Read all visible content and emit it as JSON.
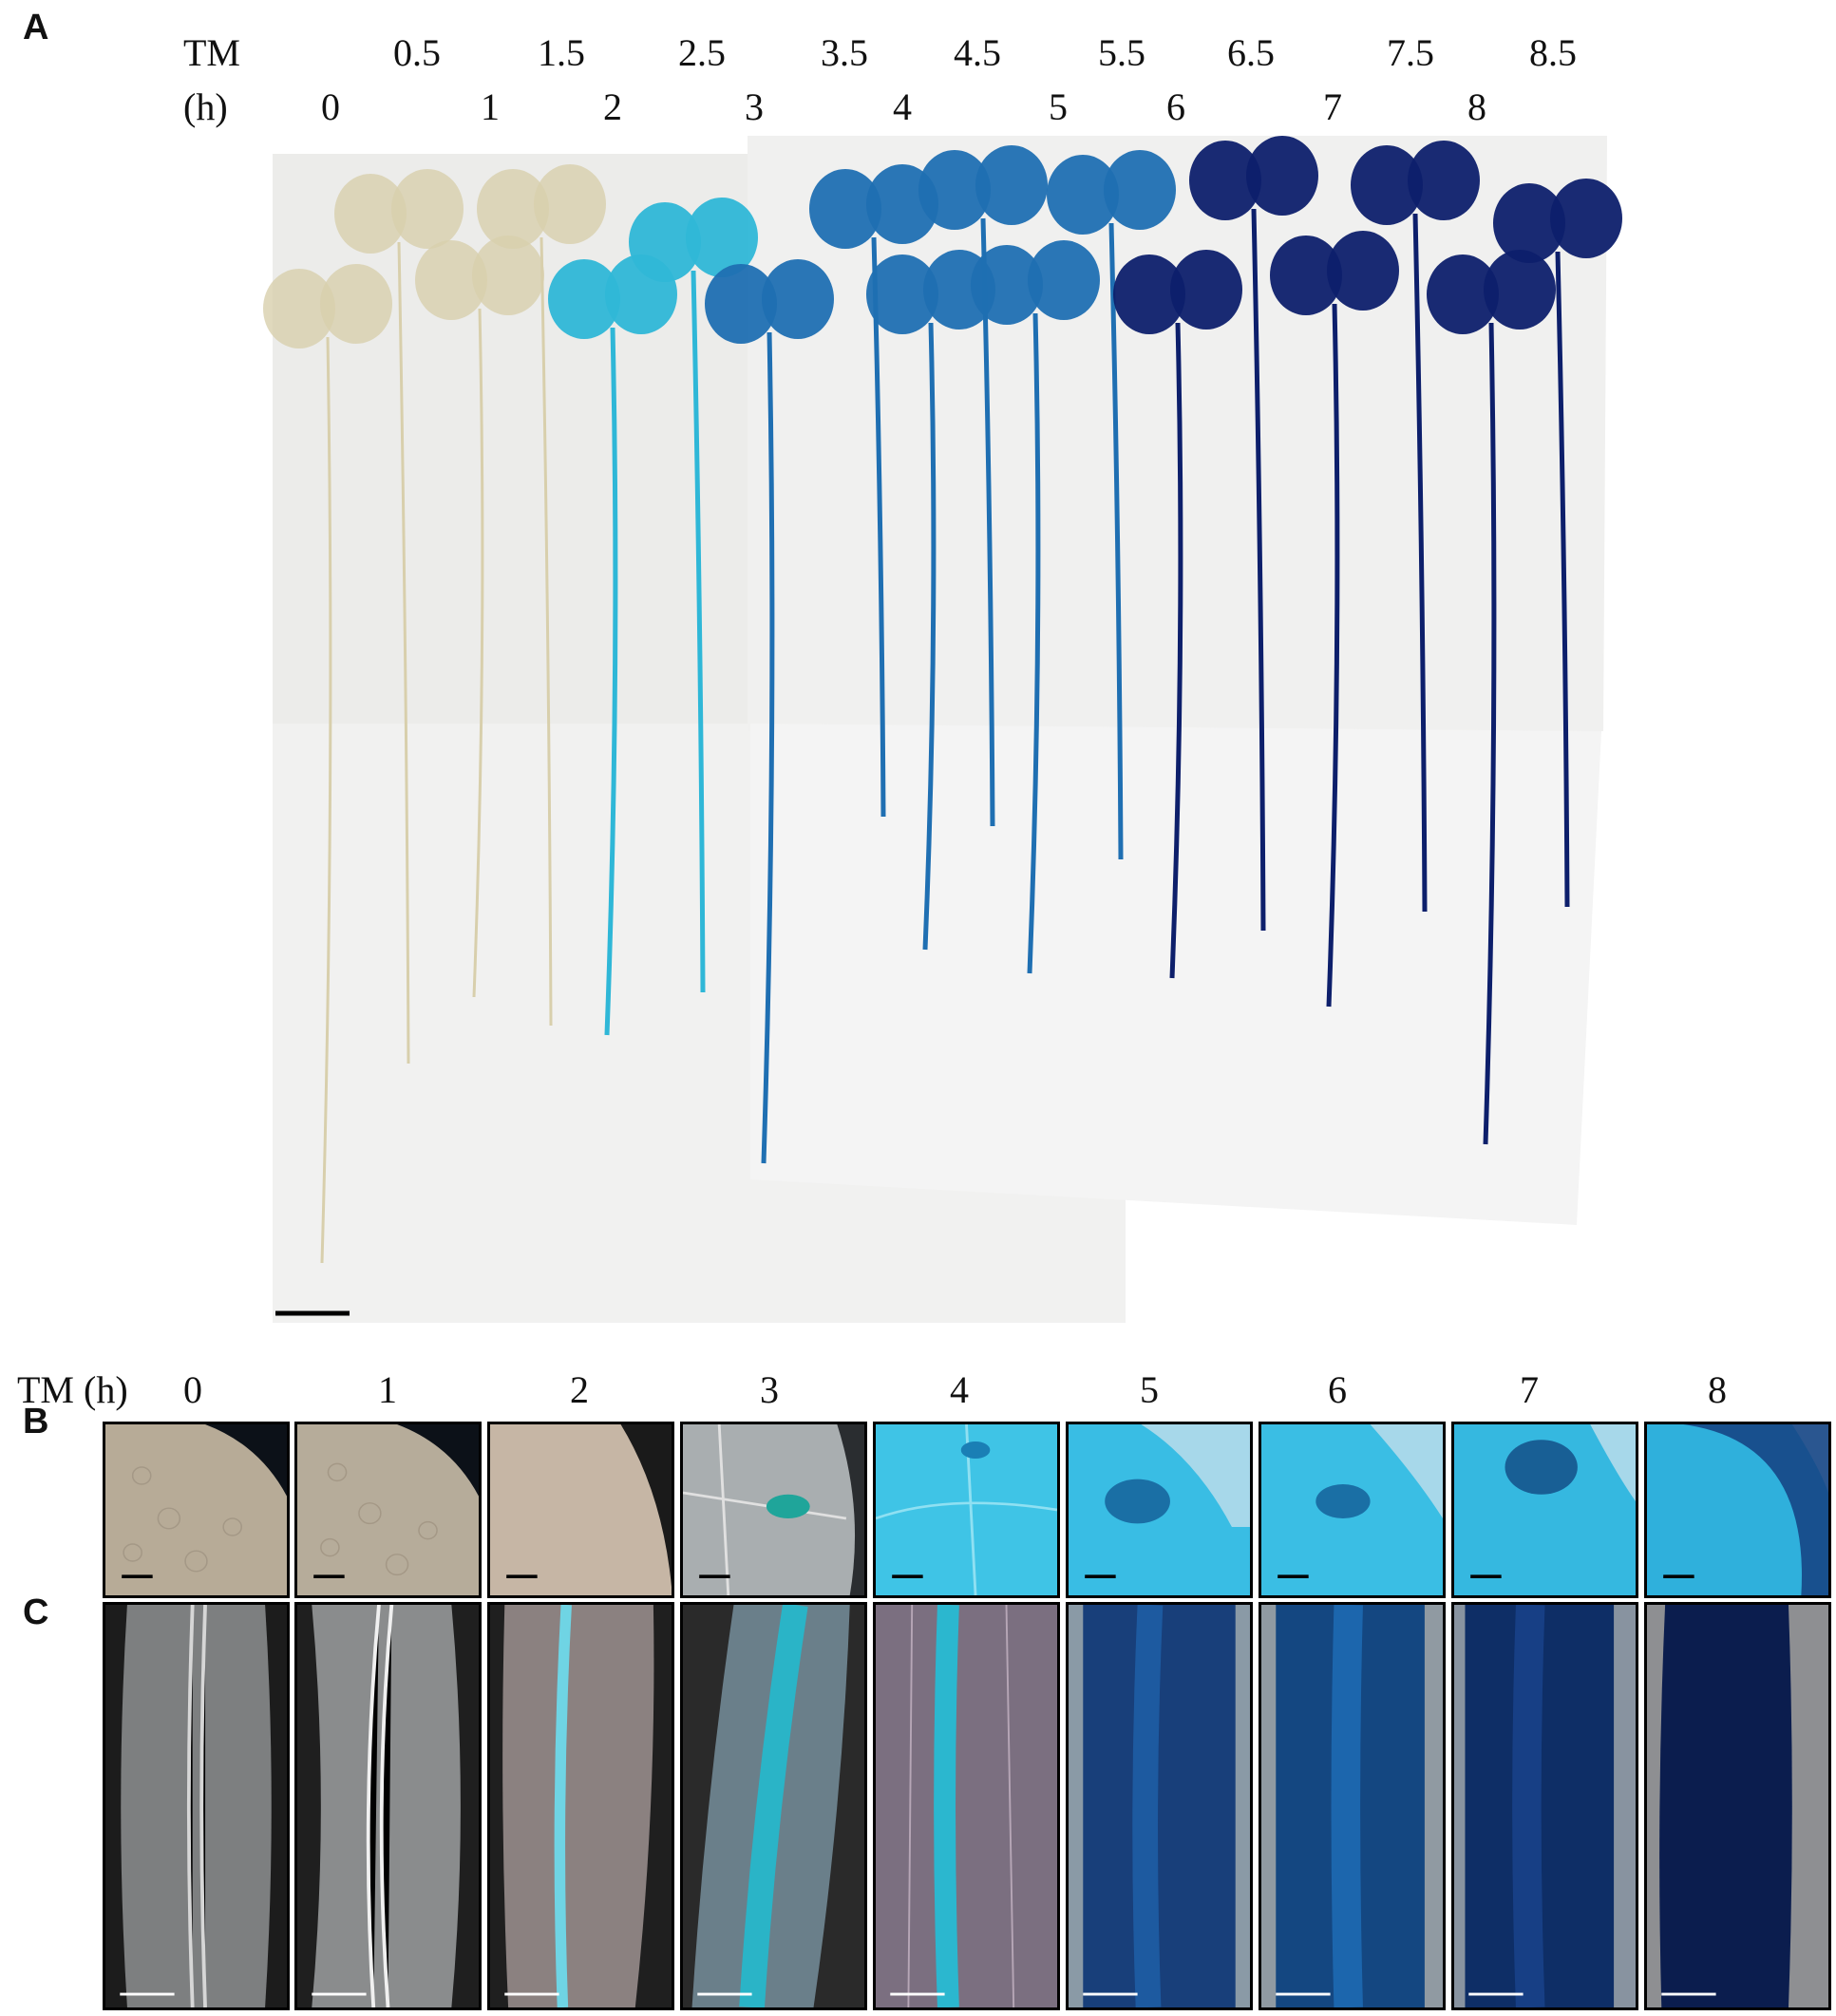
{
  "panels": {
    "a": "A",
    "b": "B",
    "c": "C"
  },
  "panel_a": {
    "row1_label": "TM",
    "row2_label": "(h)",
    "half_hours": [
      "0.5",
      "1.5",
      "2.5",
      "3.5",
      "4.5",
      "5.5",
      "6.5",
      "7.5",
      "8.5"
    ],
    "hours": [
      "0",
      "1",
      "2",
      "3",
      "4",
      "5",
      "6",
      "7",
      "8"
    ]
  },
  "panel_bc": {
    "time_label": "TM (h)",
    "times": [
      "0",
      "1",
      "2",
      "3",
      "4",
      "5",
      "6",
      "7",
      "8"
    ]
  },
  "colors": {
    "unstained": "#d8cfac",
    "stain_light": "#2fb7d7",
    "stain_mid": "#1f6fb2",
    "stain_dark": "#0d1f6b"
  }
}
